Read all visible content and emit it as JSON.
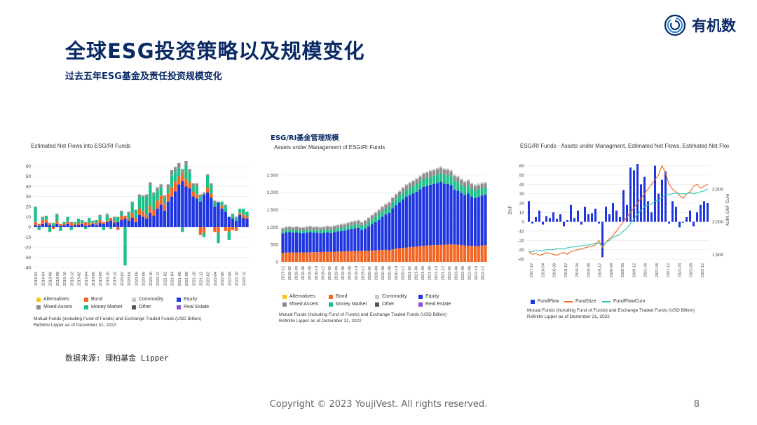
{
  "header": {
    "title": "全球ESG投资策略以及规模变化",
    "subtitle": "过去五年ESG基金及责任投资规模变化",
    "logo_text": "有机数"
  },
  "colors": {
    "alternatives": "#f5c518",
    "bond": "#f26522",
    "commodity": "#c9c9c9",
    "equity": "#1f35e0",
    "mixed_assets": "#8c8c8c",
    "money_market": "#1dbf8a",
    "other": "#555555",
    "real_estate": "#8a4fd8",
    "fundflow": "#1f35e0",
    "fundsize": "#f26522",
    "fundflowcum": "#2ec4b6"
  },
  "legend_labels": {
    "alternatives": "Alternatives",
    "bond": "Bond",
    "commodity": "Commodity",
    "equity": "Equity",
    "mixed_assets": "Mixed Assets",
    "money_market": "Money Market",
    "other": "Other",
    "real_estate": "Real Estate"
  },
  "chart_data": [
    {
      "type": "bar",
      "stacked": true,
      "title": "Estimated Net Flows into ESG/RI Funds",
      "ylim": [
        -40,
        65
      ],
      "yticks": [
        -40,
        -30,
        -20,
        -10,
        0,
        10,
        20,
        30,
        40,
        50,
        60
      ],
      "xticks": [
        "2018-02",
        "2018-04",
        "2018-06",
        "2018-08",
        "2018-10",
        "2018-12",
        "2019-02",
        "2019-04",
        "2019-06",
        "2019-08",
        "2019-10",
        "2019-12",
        "2020-02",
        "2020-04",
        "2020-06",
        "2020-08",
        "2020-10",
        "2020-12",
        "2021-02",
        "2021-04",
        "2021-06",
        "2021-08",
        "2021-10",
        "2021-12",
        "2022-02",
        "2022-04",
        "2022-06",
        "2022-08",
        "2022-10",
        "2022-12"
      ],
      "note_line1": "Mutual Funds (including Fund of Funds) and Exchange Traded Funds (USD Billion)",
      "note_line2": "Refinitiv Lipper as of Dezember 31, 2022",
      "series": [
        {
          "name": "Equity",
          "values": [
            2,
            1,
            3,
            4,
            2,
            1,
            3,
            1,
            2,
            3,
            1,
            2,
            2,
            3,
            1,
            2,
            3,
            2,
            4,
            3,
            5,
            6,
            4,
            5,
            7,
            8,
            6,
            9,
            5,
            12,
            10,
            8,
            14,
            11,
            18,
            22,
            16,
            25,
            30,
            35,
            42,
            45,
            40,
            38,
            30,
            28,
            25,
            32,
            34,
            29,
            20,
            24,
            18,
            15,
            10,
            8,
            6,
            12,
            9,
            8
          ]
        },
        {
          "name": "Bond",
          "values": [
            3,
            2,
            4,
            3,
            2,
            -2,
            3,
            2,
            1,
            2,
            3,
            1,
            2,
            1,
            3,
            2,
            1,
            2,
            3,
            2,
            1,
            3,
            2,
            -3,
            4,
            3,
            2,
            5,
            4,
            6,
            5,
            4,
            7,
            6,
            8,
            9,
            7,
            8,
            9,
            10,
            8,
            9,
            7,
            6,
            5,
            4,
            -8,
            -6,
            5,
            4,
            -5,
            -6,
            3,
            -4,
            -5,
            -3,
            -4,
            2,
            3,
            2
          ]
        },
        {
          "name": "Money Market",
          "values": [
            15,
            -3,
            2,
            4,
            -5,
            3,
            6,
            -4,
            2,
            5,
            -3,
            2,
            4,
            3,
            -2,
            5,
            2,
            3,
            4,
            -3,
            6,
            -2,
            3,
            5,
            4,
            -38,
            6,
            10,
            8,
            12,
            15,
            18,
            20,
            15,
            10,
            8,
            6,
            5,
            12,
            10,
            8,
            -5,
            14,
            10,
            6,
            8,
            5,
            -4,
            12,
            8,
            5,
            -10,
            4,
            6,
            -8,
            5,
            3,
            4,
            6,
            5
          ]
        },
        {
          "name": "Mixed Assets",
          "values": [
            0,
            0,
            1,
            0,
            0,
            0,
            1,
            0,
            0,
            0,
            1,
            0,
            0,
            0,
            1,
            0,
            0,
            0,
            1,
            0,
            1,
            0,
            1,
            0,
            1,
            0,
            1,
            1,
            0,
            2,
            1,
            2,
            3,
            2,
            3,
            3,
            2,
            4,
            5,
            4,
            5,
            3,
            4,
            3,
            2,
            3,
            2,
            2,
            1,
            2,
            1,
            1,
            0,
            1,
            0,
            0,
            1,
            0,
            0,
            0
          ]
        }
      ]
    },
    {
      "type": "bar",
      "stacked": true,
      "head": "ESG/RI基金管理规模",
      "title": "Assets under Management of ESG/RI Funds",
      "ylim": [
        0,
        2900
      ],
      "yticks": [
        0,
        500,
        1000,
        1500,
        2000,
        2500
      ],
      "ytick_labels": [
        "0",
        "500",
        "1,000",
        "1,500",
        "2,000",
        "2,500"
      ],
      "xticks": [
        "2017-12",
        "2018-02",
        "2018-04",
        "2018-06",
        "2018-08",
        "2018-10",
        "2018-12",
        "2019-02",
        "2019-04",
        "2019-06",
        "2019-08",
        "2019-10",
        "2019-12",
        "2020-02",
        "2020-04",
        "2020-06",
        "2020-08",
        "2020-10",
        "2020-12",
        "2021-02",
        "2021-04",
        "2021-06",
        "2021-08",
        "2021-10",
        "2021-12",
        "2022-02",
        "2022-04",
        "2022-06",
        "2022-08",
        "2022-10",
        "2022-12"
      ],
      "note_line1": "Mutual Funds (including Fund of Funds) and Exchange Traded Funds (USD Billion)",
      "note_line2": "Refinitiv Lipper as of Dezember 31, 2022",
      "series": [
        {
          "name": "Bond",
          "values": [
            260,
            265,
            268,
            270,
            272,
            270,
            268,
            272,
            275,
            278,
            280,
            282,
            285,
            288,
            290,
            292,
            295,
            298,
            300,
            305,
            310,
            312,
            315,
            318,
            320,
            322,
            325,
            330,
            335,
            340,
            345,
            330,
            360,
            380,
            390,
            400,
            410,
            420,
            430,
            440,
            450,
            460,
            470,
            475,
            480,
            485,
            490,
            495,
            500,
            505,
            500,
            490,
            480,
            470,
            465,
            460,
            455,
            450,
            470,
            480
          ]
        },
        {
          "name": "Equity",
          "values": [
            560,
            580,
            590,
            570,
            575,
            560,
            555,
            570,
            580,
            560,
            560,
            540,
            550,
            560,
            540,
            560,
            580,
            590,
            600,
            620,
            640,
            650,
            660,
            600,
            640,
            700,
            760,
            820,
            880,
            960,
            1020,
            1080,
            1180,
            1250,
            1320,
            1400,
            1460,
            1500,
            1540,
            1580,
            1640,
            1700,
            1720,
            1740,
            1760,
            1780,
            1820,
            1750,
            1740,
            1700,
            1580,
            1560,
            1500,
            1450,
            1500,
            1420,
            1380,
            1420,
            1440,
            1450
          ]
        },
        {
          "name": "Money Market",
          "values": [
            60,
            70,
            65,
            70,
            72,
            70,
            70,
            72,
            75,
            70,
            72,
            75,
            78,
            80,
            82,
            84,
            86,
            88,
            90,
            95,
            100,
            105,
            110,
            115,
            120,
            130,
            140,
            150,
            155,
            160,
            165,
            170,
            175,
            180,
            185,
            190,
            200,
            205,
            210,
            215,
            220,
            225,
            230,
            235,
            240,
            245,
            250,
            255,
            260,
            255,
            250,
            245,
            240,
            235,
            230,
            225,
            220,
            215,
            210,
            205
          ]
        },
        {
          "name": "Mixed Assets",
          "values": [
            80,
            80,
            82,
            82,
            83,
            83,
            84,
            84,
            85,
            85,
            86,
            86,
            87,
            87,
            88,
            88,
            90,
            90,
            92,
            92,
            95,
            95,
            98,
            98,
            100,
            102,
            105,
            108,
            110,
            112,
            115,
            118,
            120,
            122,
            125,
            128,
            130,
            132,
            135,
            138,
            140,
            142,
            145,
            148,
            150,
            152,
            150,
            148,
            145,
            142,
            140,
            138,
            135,
            132,
            130,
            128,
            126,
            124,
            122,
            120
          ]
        },
        {
          "name": "Commodity",
          "values": [
            20,
            20,
            21,
            21,
            22,
            22,
            22,
            23,
            23,
            24,
            24,
            25,
            25,
            26,
            26,
            27,
            27,
            28,
            28,
            29,
            29,
            30,
            30,
            31,
            31,
            32,
            32,
            33,
            33,
            34,
            34,
            35,
            35,
            36,
            36,
            37,
            37,
            38,
            38,
            39,
            39,
            40,
            40,
            41,
            41,
            42,
            42,
            43,
            43,
            44,
            44,
            45,
            45,
            46,
            46,
            47,
            47,
            48,
            48,
            49
          ]
        }
      ]
    },
    {
      "type": "bar+line",
      "title": "ESG/RI Funds - Assets under Managment, Estimated Net Flows, Estimated Net Flows Cum",
      "ylabel_left": "ENF",
      "ylabel_right": "AUM, ENF Cum",
      "ylim": [
        -40,
        65
      ],
      "yticks": [
        -40,
        -30,
        -20,
        -10,
        0,
        10,
        20,
        30,
        40,
        50,
        60
      ],
      "right_ticks": [
        "1,500",
        "2,000",
        "2,500"
      ],
      "xticks": [
        "2017-12",
        "2018-04",
        "2018-08",
        "2018-12",
        "2019-04",
        "2019-08",
        "2019-12",
        "2020-04",
        "2020-08",
        "2020-12",
        "2021-04",
        "2021-08",
        "2021-12",
        "2022-04",
        "2022-08",
        "2022-12"
      ],
      "legend": [
        "FundFlow",
        "FundSize",
        "FundFlowCum"
      ],
      "note_line1": "Mutual Funds (including Fund of Funds) and Exchange Traded Funds (USD Billion)",
      "note_line2": "Refinitiv Lipper as of Dezember 31, 2022",
      "fundflow": [
        22,
        -2,
        5,
        12,
        -3,
        6,
        4,
        10,
        3,
        8,
        -5,
        2,
        18,
        4,
        12,
        -3,
        16,
        8,
        9,
        14,
        -2,
        -38,
        16,
        8,
        20,
        12,
        5,
        34,
        18,
        58,
        55,
        62,
        40,
        48,
        22,
        10,
        60,
        30,
        45,
        54,
        -2,
        22,
        16,
        -6,
        -1,
        5,
        12,
        -5,
        10,
        18,
        22,
        20
      ],
      "fundsize": [
        -32,
        -35,
        -34,
        -36,
        -35,
        -33,
        -34,
        -35,
        -36,
        -34,
        -33,
        -35,
        -32,
        -31,
        -30,
        -29,
        -28,
        -27,
        -26,
        -25,
        -20,
        -28,
        -22,
        -18,
        -15,
        -10,
        -5,
        0,
        5,
        10,
        15,
        20,
        25,
        30,
        35,
        40,
        45,
        50,
        60,
        52,
        40,
        35,
        32,
        28,
        25,
        30,
        32,
        38,
        40,
        36,
        38,
        40
      ],
      "fundflowcum": [
        -32,
        -32,
        -31,
        -31,
        -31,
        -30,
        -30,
        -30,
        -29,
        -29,
        -29,
        -28,
        -27,
        -27,
        -26,
        -26,
        -25,
        -25,
        -24,
        -23,
        -23,
        -26,
        -22,
        -20,
        -17,
        -15,
        -14,
        -10,
        -7,
        -2,
        3,
        8,
        12,
        16,
        18,
        19,
        22,
        23,
        26,
        29,
        29,
        30,
        31,
        30,
        30,
        30,
        31,
        30,
        31,
        32,
        33,
        35
      ]
    }
  ],
  "footer": {
    "source": "数据来源: 理柏基金 Lipper",
    "copyright": "Copyright © 2023 YoujiVest. All rights reserved.",
    "page": "8"
  }
}
